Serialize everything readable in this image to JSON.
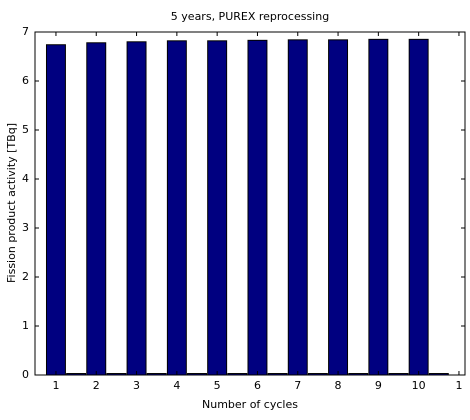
{
  "chart_data": {
    "type": "bar",
    "title": "5 years, PUREX reprocessing",
    "xlabel": "Number of cycles",
    "ylabel": "Fission product activity [TBq]",
    "series": [
      {
        "color": "#000080",
        "x": [
          1,
          2,
          3,
          4,
          5,
          6,
          7,
          8,
          9,
          10
        ],
        "values": [
          6.74,
          6.78,
          6.8,
          6.82,
          6.82,
          6.83,
          6.84,
          6.84,
          6.85,
          6.85
        ]
      },
      {
        "color": "#000080",
        "x": [
          1.5,
          2.5,
          3.5,
          4.5,
          5.5,
          6.5,
          7.5,
          8.5,
          9.5,
          10.5
        ],
        "values": [
          0.03,
          0.03,
          0.03,
          0.03,
          0.03,
          0.03,
          0.03,
          0.03,
          0.03,
          0.03
        ]
      }
    ],
    "xlim": [
      0.48,
      11.15
    ],
    "xticks": [
      1,
      2,
      3,
      4,
      5,
      6,
      7,
      8,
      9,
      10,
      {
        "value": 11,
        "label": "1"
      }
    ],
    "ylim": [
      0,
      7
    ],
    "yticks": [
      0,
      1,
      2,
      3,
      4,
      5,
      6,
      7
    ]
  }
}
